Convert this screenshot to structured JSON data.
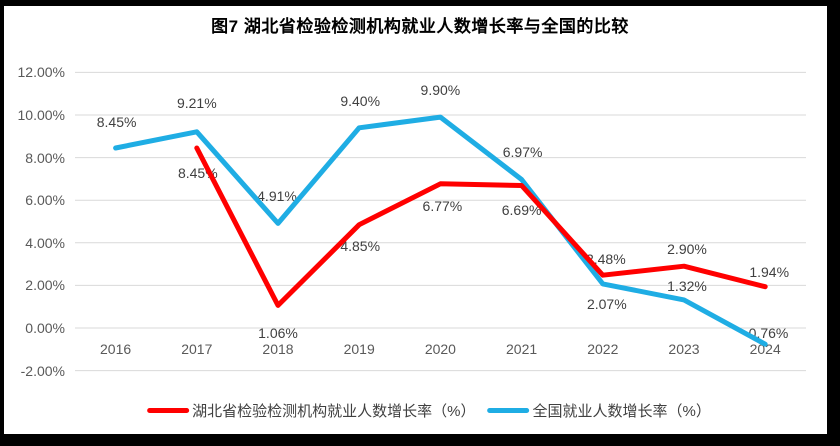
{
  "title": "图7 湖北省检验检测机构就业人数增长率与全国的比较",
  "chart_data": {
    "type": "line",
    "categories": [
      "2016",
      "2017",
      "2018",
      "2019",
      "2020",
      "2021",
      "2022",
      "2023",
      "2024"
    ],
    "series": [
      {
        "name": "湖北省检验检测机构就业人数增长率（%）",
        "color": "#FF0000",
        "values": [
          null,
          8.45,
          1.06,
          4.85,
          6.77,
          6.69,
          2.48,
          2.9,
          1.94
        ],
        "label_offsets": [
          [
            0,
            0
          ],
          [
            1,
            25
          ],
          [
            0,
            28
          ],
          [
            1,
            21
          ],
          [
            2,
            22
          ],
          [
            0,
            24
          ],
          [
            3,
            -16
          ],
          [
            3,
            -17
          ],
          [
            4,
            -15
          ]
        ]
      },
      {
        "name": "全国就业人数增长率（%）",
        "color": "#1FADE4",
        "values": [
          8.45,
          9.21,
          4.91,
          9.4,
          9.9,
          6.97,
          2.07,
          1.32,
          -0.76
        ],
        "label_offsets": [
          [
            1,
            -26
          ],
          [
            0,
            -29
          ],
          [
            -1,
            -27
          ],
          [
            1,
            -27
          ],
          [
            0,
            -27
          ],
          [
            1,
            -28
          ],
          [
            4,
            20
          ],
          [
            3,
            -14
          ],
          [
            1,
            -11
          ]
        ]
      }
    ],
    "yticks": [
      12,
      10,
      8,
      6,
      4,
      2,
      0,
      -2
    ],
    "ytick_labels": [
      "12.00%",
      "10.00%",
      "8.00%",
      "6.00%",
      "4.00%",
      "2.00%",
      "0.00%",
      "-2.00%"
    ],
    "ylim": [
      -2,
      12
    ],
    "value_label_suffix": "%",
    "grid": true,
    "gridline_color": "#D9D9D9",
    "tick_label_color": "#595959",
    "data_label_color": "#404040",
    "legend_position": "bottom"
  }
}
